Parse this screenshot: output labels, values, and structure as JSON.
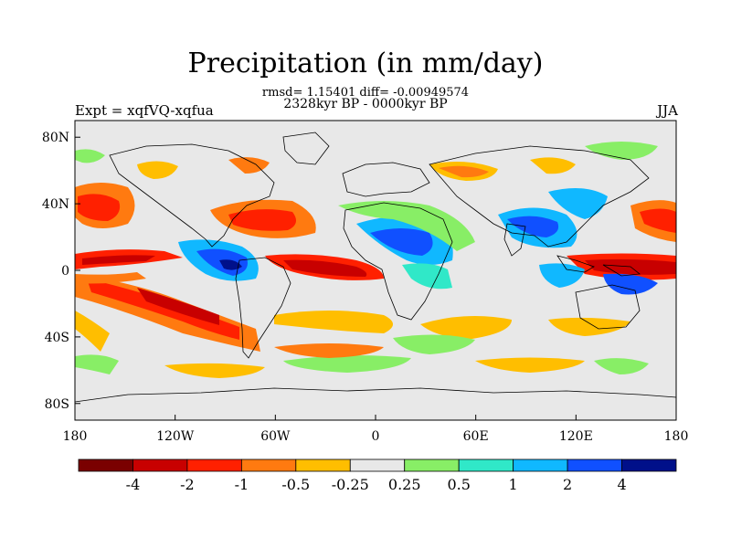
{
  "title": "Precipitation (in mm/day)",
  "stats": "rmsd= 1.15401 diff= -0.00949574",
  "period": "2328kyr BP - 0000kyr BP",
  "experiment": "Expt = xqfVQ-xqfua",
  "season": "JJA",
  "lat_ticks": [
    "80N",
    "40N",
    "0",
    "40S",
    "80S"
  ],
  "lon_ticks": [
    "180",
    "120W",
    "60W",
    "0",
    "60E",
    "120E",
    "180"
  ],
  "colorbar": {
    "labels": [
      "-4",
      "-2",
      "-1",
      "-0.5",
      "-0.25",
      "0.25",
      "0.5",
      "1",
      "2",
      "4"
    ],
    "colors": [
      "#7a0000",
      "#c80000",
      "#ff2000",
      "#ff7a10",
      "#ffbe00",
      "#e8e8e8",
      "#88ee66",
      "#30e8c8",
      "#10b8ff",
      "#1050ff",
      "#00108a"
    ]
  },
  "map_colors": {
    "ocean_background": "#e8e8e8",
    "strong_drying": "#c80000",
    "drying": "#ff7a10",
    "weak_drying": "#ffbe00",
    "weak_wetting": "#88ee66",
    "wetting": "#10b8ff",
    "strong_wetting": "#1050ff"
  }
}
